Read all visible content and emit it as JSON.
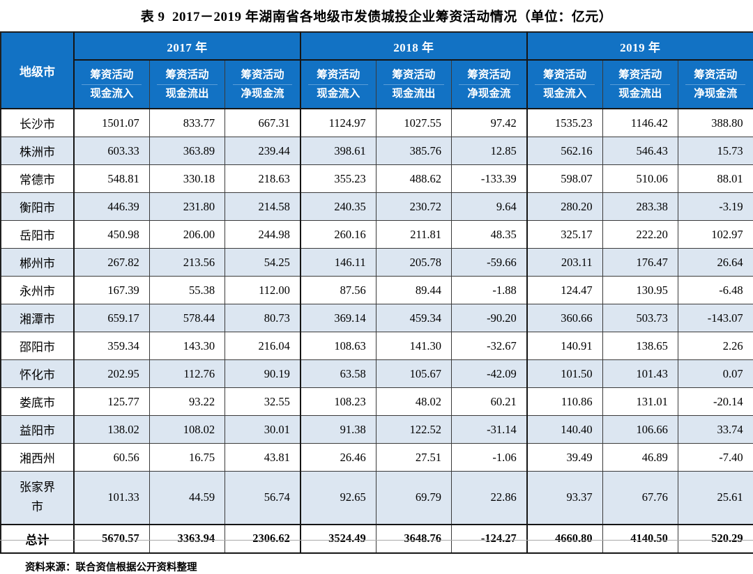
{
  "title": "表 9  2017－2019 年湖南省各地级市发债城投企业筹资活动情况（单位：亿元）",
  "footer_source": "资料来源：联合资信根据公开资料整理",
  "colors": {
    "header_bg": "#1272C4",
    "header_text": "#FFFFFF",
    "row_alt_bg": "#DCE6F1",
    "border": "#3A3A3A"
  },
  "table": {
    "city_header": "地级市",
    "year_groups": [
      "2017 年",
      "2018 年",
      "2019 年"
    ],
    "sub_header_line1": "筹资活动",
    "sub_header_line2": [
      "现金流入",
      "现金流出",
      "净现金流"
    ],
    "rows": [
      {
        "city": "长沙市",
        "values": [
          "1501.07",
          "833.77",
          "667.31",
          "1124.97",
          "1027.55",
          "97.42",
          "1535.23",
          "1146.42",
          "388.80"
        ]
      },
      {
        "city": "株洲市",
        "values": [
          "603.33",
          "363.89",
          "239.44",
          "398.61",
          "385.76",
          "12.85",
          "562.16",
          "546.43",
          "15.73"
        ]
      },
      {
        "city": "常德市",
        "values": [
          "548.81",
          "330.18",
          "218.63",
          "355.23",
          "488.62",
          "-133.39",
          "598.07",
          "510.06",
          "88.01"
        ]
      },
      {
        "city": "衡阳市",
        "values": [
          "446.39",
          "231.80",
          "214.58",
          "240.35",
          "230.72",
          "9.64",
          "280.20",
          "283.38",
          "-3.19"
        ]
      },
      {
        "city": "岳阳市",
        "values": [
          "450.98",
          "206.00",
          "244.98",
          "260.16",
          "211.81",
          "48.35",
          "325.17",
          "222.20",
          "102.97"
        ]
      },
      {
        "city": "郴州市",
        "values": [
          "267.82",
          "213.56",
          "54.25",
          "146.11",
          "205.78",
          "-59.66",
          "203.11",
          "176.47",
          "26.64"
        ]
      },
      {
        "city": "永州市",
        "values": [
          "167.39",
          "55.38",
          "112.00",
          "87.56",
          "89.44",
          "-1.88",
          "124.47",
          "130.95",
          "-6.48"
        ]
      },
      {
        "city": "湘潭市",
        "values": [
          "659.17",
          "578.44",
          "80.73",
          "369.14",
          "459.34",
          "-90.20",
          "360.66",
          "503.73",
          "-143.07"
        ]
      },
      {
        "city": "邵阳市",
        "values": [
          "359.34",
          "143.30",
          "216.04",
          "108.63",
          "141.30",
          "-32.67",
          "140.91",
          "138.65",
          "2.26"
        ]
      },
      {
        "city": "怀化市",
        "values": [
          "202.95",
          "112.76",
          "90.19",
          "63.58",
          "105.67",
          "-42.09",
          "101.50",
          "101.43",
          "0.07"
        ]
      },
      {
        "city": "娄底市",
        "values": [
          "125.77",
          "93.22",
          "32.55",
          "108.23",
          "48.02",
          "60.21",
          "110.86",
          "131.01",
          "-20.14"
        ]
      },
      {
        "city": "益阳市",
        "values": [
          "138.02",
          "108.02",
          "30.01",
          "91.38",
          "122.52",
          "-31.14",
          "140.40",
          "106.66",
          "33.74"
        ]
      },
      {
        "city": "湘西州",
        "values": [
          "60.56",
          "16.75",
          "43.81",
          "26.46",
          "27.51",
          "-1.06",
          "39.49",
          "46.89",
          "-7.40"
        ]
      },
      {
        "city": "张家界市",
        "values": [
          "101.33",
          "44.59",
          "56.74",
          "92.65",
          "69.79",
          "22.86",
          "93.37",
          "67.76",
          "25.61"
        ]
      }
    ],
    "total_row": {
      "city": "总计",
      "values": [
        "5670.57",
        "3363.94",
        "2306.62",
        "3524.49",
        "3648.76",
        "-124.27",
        "4660.80",
        "4140.50",
        "520.29"
      ]
    }
  }
}
